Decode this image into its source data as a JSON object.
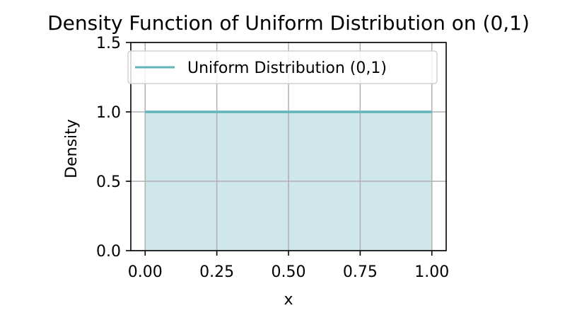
{
  "chart_data": {
    "type": "area",
    "title": "Density Function of Uniform Distribution on (0,1)",
    "xlabel": "x",
    "ylabel": "Density",
    "xlim": [
      -0.05,
      1.05
    ],
    "ylim": [
      0,
      1.5
    ],
    "x_ticks": [
      0.0,
      0.25,
      0.5,
      0.75,
      1.0
    ],
    "x_tick_labels": [
      "0.00",
      "0.25",
      "0.50",
      "0.75",
      "1.00"
    ],
    "y_ticks": [
      0.0,
      0.5,
      1.0,
      1.5
    ],
    "y_tick_labels": [
      "0.0",
      "0.5",
      "1.0",
      "1.5"
    ],
    "grid": true,
    "legend_position": "top",
    "series": [
      {
        "name": "Uniform Distribution (0,1)",
        "x": [
          0.0,
          1.0
        ],
        "y": [
          1.0,
          1.0
        ],
        "line_color": "#5fb5b8",
        "fill_color": "#cfe7ea"
      }
    ]
  }
}
